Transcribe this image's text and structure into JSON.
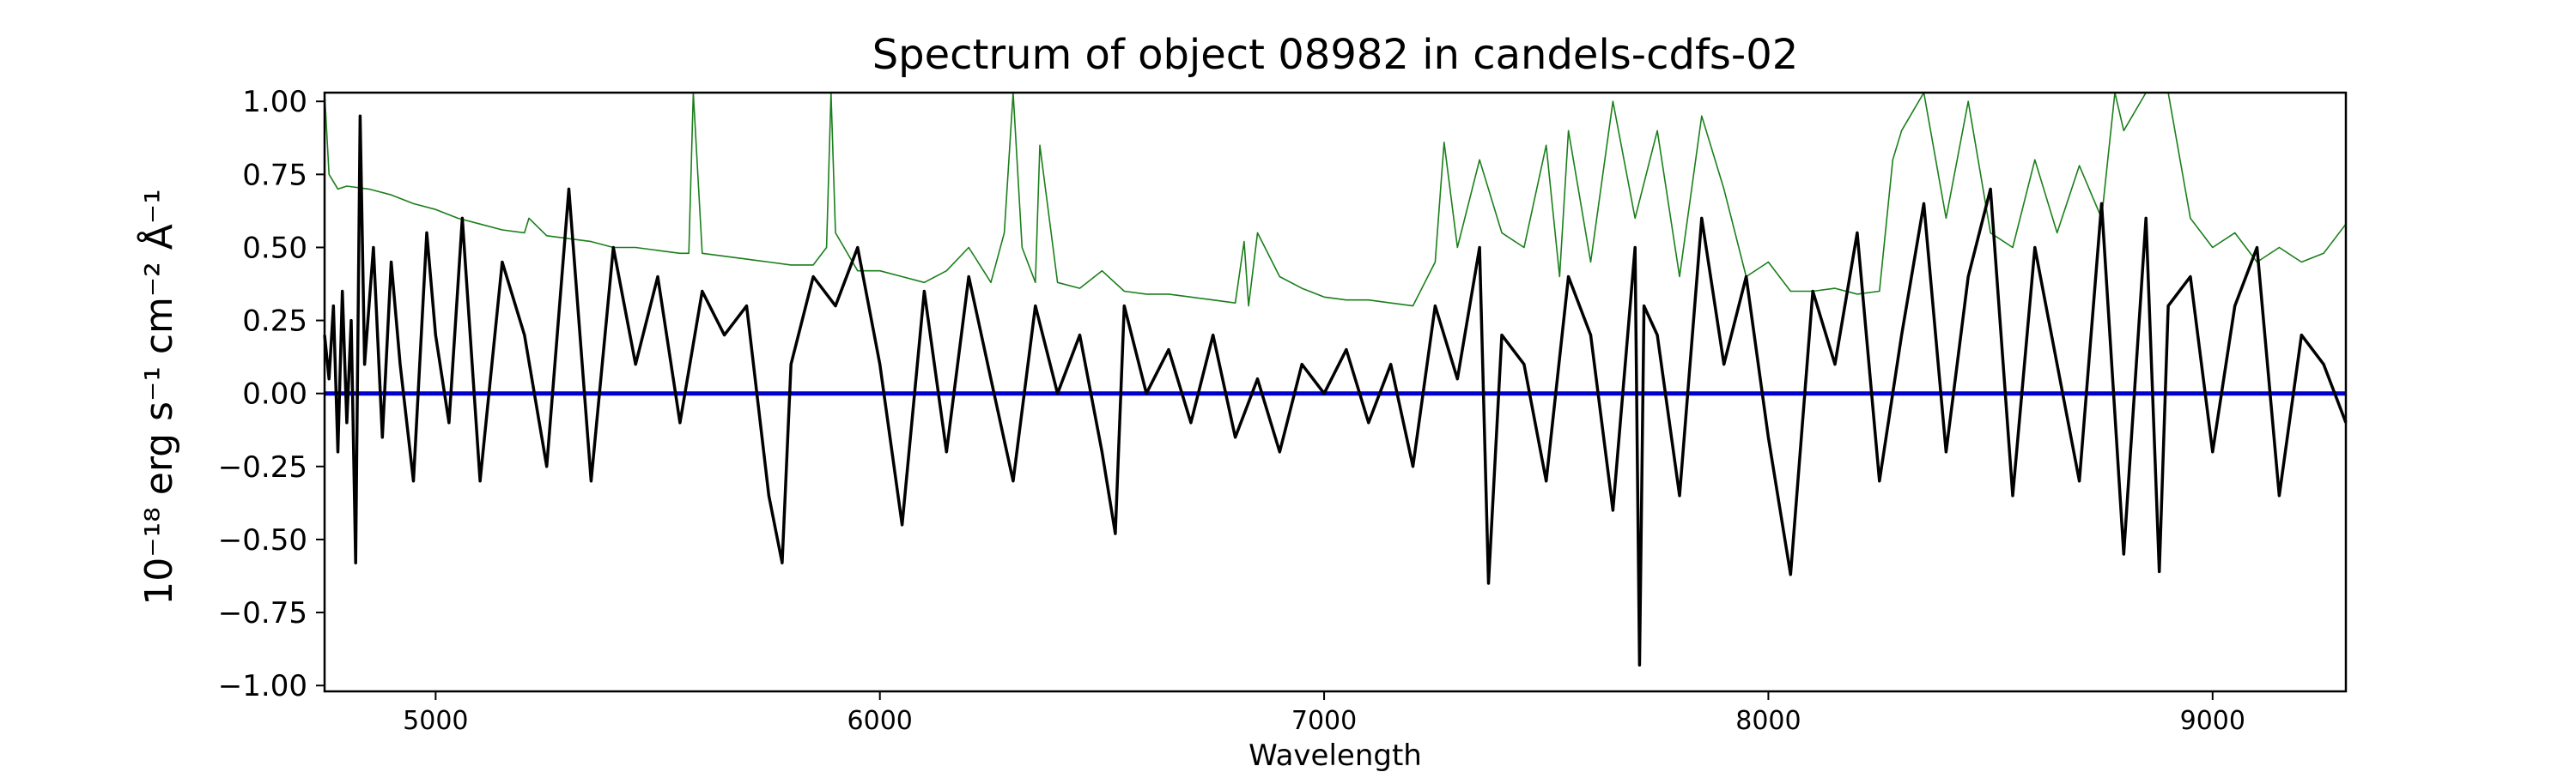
{
  "chart_data": {
    "type": "line",
    "title": "Spectrum of object 08982 in candels-cdfs-02",
    "xlabel": "Wavelength",
    "ylabel": "10⁻¹⁸ erg s⁻¹ cm⁻² Å⁻¹",
    "xlim": [
      4750,
      9300
    ],
    "ylim": [
      -1.02,
      1.03
    ],
    "xticks": [
      5000,
      6000,
      7000,
      8000,
      9000
    ],
    "yticks": [
      -1.0,
      -0.75,
      -0.5,
      -0.25,
      0.0,
      0.25,
      0.5,
      0.75,
      1.0
    ],
    "xtick_labels": [
      "5000",
      "6000",
      "7000",
      "8000",
      "9000"
    ],
    "ytick_labels": [
      "−1.00",
      "−0.75",
      "−0.50",
      "−0.25",
      "0.00",
      "0.25",
      "0.50",
      "0.75",
      "1.00"
    ],
    "grid": false,
    "series": [
      {
        "color": "#000000",
        "description": "flux",
        "x": [
          4750,
          4760,
          4770,
          4780,
          4790,
          4800,
          4810,
          4820,
          4830,
          4840,
          4860,
          4880,
          4900,
          4920,
          4950,
          4980,
          5000,
          5030,
          5060,
          5100,
          5150,
          5200,
          5250,
          5300,
          5350,
          5400,
          5450,
          5500,
          5550,
          5600,
          5650,
          5700,
          5750,
          5780,
          5800,
          5850,
          5900,
          5950,
          6000,
          6050,
          6100,
          6150,
          6200,
          6250,
          6300,
          6350,
          6400,
          6450,
          6500,
          6530,
          6550,
          6600,
          6650,
          6700,
          6750,
          6800,
          6850,
          6900,
          6950,
          7000,
          7050,
          7100,
          7150,
          7200,
          7250,
          7300,
          7350,
          7370,
          7400,
          7450,
          7500,
          7550,
          7600,
          7650,
          7700,
          7710,
          7720,
          7750,
          7800,
          7850,
          7900,
          7950,
          8000,
          8050,
          8100,
          8150,
          8200,
          8250,
          8300,
          8350,
          8400,
          8450,
          8500,
          8550,
          8600,
          8650,
          8700,
          8750,
          8800,
          8850,
          8880,
          8900,
          8950,
          9000,
          9050,
          9100,
          9150,
          9200,
          9250,
          9300
        ],
        "y": [
          0.2,
          0.05,
          0.3,
          -0.2,
          0.35,
          -0.1,
          0.25,
          -0.58,
          0.95,
          0.1,
          0.5,
          -0.15,
          0.45,
          0.1,
          -0.3,
          0.55,
          0.2,
          -0.1,
          0.6,
          -0.3,
          0.45,
          0.2,
          -0.25,
          0.7,
          -0.3,
          0.5,
          0.1,
          0.4,
          -0.1,
          0.35,
          0.2,
          0.3,
          -0.35,
          -0.58,
          0.1,
          0.4,
          0.3,
          0.5,
          0.1,
          -0.45,
          0.35,
          -0.2,
          0.4,
          0.05,
          -0.3,
          0.3,
          0.0,
          0.2,
          -0.2,
          -0.48,
          0.3,
          0.0,
          0.15,
          -0.1,
          0.2,
          -0.15,
          0.05,
          -0.2,
          0.1,
          0.0,
          0.15,
          -0.1,
          0.1,
          -0.25,
          0.3,
          0.05,
          0.5,
          -0.65,
          0.2,
          0.1,
          -0.3,
          0.4,
          0.2,
          -0.4,
          0.5,
          -0.93,
          0.3,
          0.2,
          -0.35,
          0.6,
          0.1,
          0.4,
          -0.15,
          -0.62,
          0.35,
          0.1,
          0.55,
          -0.3,
          0.2,
          0.65,
          -0.2,
          0.4,
          0.7,
          -0.35,
          0.5,
          0.1,
          -0.3,
          0.65,
          -0.55,
          0.6,
          -0.61,
          0.3,
          0.4,
          -0.2,
          0.3,
          0.5,
          -0.35,
          0.2,
          0.1,
          -0.1
        ]
      },
      {
        "color": "#1a7f1a",
        "description": "error",
        "x": [
          4750,
          4760,
          4780,
          4800,
          4850,
          4900,
          4950,
          5000,
          5050,
          5100,
          5150,
          5200,
          5210,
          5250,
          5300,
          5350,
          5400,
          5450,
          5500,
          5550,
          5570,
          5580,
          5600,
          5650,
          5700,
          5750,
          5800,
          5850,
          5880,
          5890,
          5900,
          5950,
          6000,
          6050,
          6100,
          6150,
          6200,
          6250,
          6280,
          6300,
          6320,
          6350,
          6360,
          6400,
          6450,
          6500,
          6550,
          6600,
          6650,
          6700,
          6750,
          6800,
          6820,
          6830,
          6850,
          6900,
          6950,
          7000,
          7050,
          7100,
          7150,
          7200,
          7250,
          7270,
          7300,
          7350,
          7400,
          7450,
          7500,
          7530,
          7550,
          7600,
          7650,
          7700,
          7750,
          7800,
          7850,
          7900,
          7950,
          8000,
          8050,
          8100,
          8150,
          8200,
          8250,
          8280,
          8300,
          8350,
          8400,
          8450,
          8500,
          8550,
          8600,
          8650,
          8700,
          8750,
          8780,
          8800,
          8850,
          8900,
          8950,
          9000,
          9050,
          9100,
          9150,
          9200,
          9250,
          9300
        ],
        "y": [
          1.03,
          0.75,
          0.7,
          0.71,
          0.7,
          0.68,
          0.65,
          0.63,
          0.6,
          0.58,
          0.56,
          0.55,
          0.6,
          0.54,
          0.53,
          0.52,
          0.5,
          0.5,
          0.49,
          0.48,
          0.48,
          1.03,
          0.48,
          0.47,
          0.46,
          0.45,
          0.44,
          0.44,
          0.5,
          1.03,
          0.55,
          0.42,
          0.42,
          0.4,
          0.38,
          0.42,
          0.5,
          0.38,
          0.55,
          1.03,
          0.5,
          0.38,
          0.85,
          0.38,
          0.36,
          0.42,
          0.35,
          0.34,
          0.34,
          0.33,
          0.32,
          0.31,
          0.52,
          0.3,
          0.55,
          0.4,
          0.36,
          0.33,
          0.32,
          0.32,
          0.31,
          0.3,
          0.45,
          0.86,
          0.5,
          0.8,
          0.55,
          0.5,
          0.85,
          0.4,
          0.9,
          0.45,
          1.0,
          0.6,
          0.9,
          0.4,
          0.95,
          0.7,
          0.4,
          0.45,
          0.35,
          0.35,
          0.36,
          0.34,
          0.35,
          0.8,
          0.9,
          1.03,
          0.6,
          1.0,
          0.55,
          0.5,
          0.8,
          0.55,
          0.78,
          0.6,
          1.03,
          0.9,
          1.03,
          1.03,
          0.6,
          0.5,
          0.55,
          0.45,
          0.5,
          0.45,
          0.48,
          0.58
        ]
      },
      {
        "color": "#0000cc",
        "description": "zero",
        "x": [
          4750,
          9300
        ],
        "y": [
          0,
          0
        ]
      }
    ]
  }
}
